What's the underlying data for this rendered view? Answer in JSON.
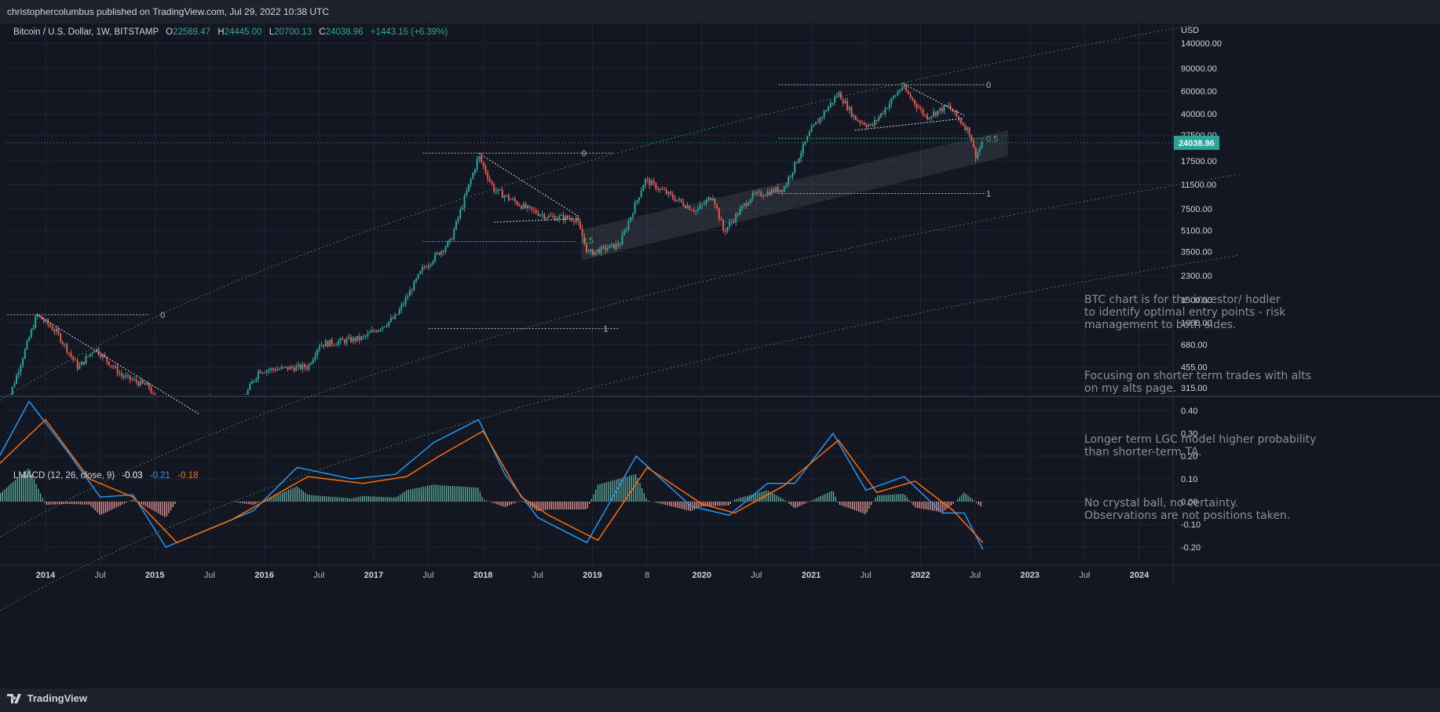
{
  "header": {
    "published_text": "christophercolumbus published on TradingView.com, Jul 29, 2022 10:38 UTC"
  },
  "legend": {
    "symbol": "Bitcoin / U.S. Dollar, 1W, BITSTAMP",
    "o_label": "O",
    "o_value": "22589.47",
    "h_label": "H",
    "h_value": "24445.00",
    "l_label": "L",
    "l_value": "20700.13",
    "c_label": "C",
    "c_value": "24038.96",
    "change": "+1443.15 (+6.39%)"
  },
  "macd_legend": {
    "name": "LMACD (12, 26, close, 9)",
    "hist": "-0.03",
    "macd": "-0.21",
    "signal": "-0.18"
  },
  "notes": [
    "BTC chart is for the investor/ hodler\nto identify optimal entry points - risk\nmanagement to both sides.",
    "Focusing on shorter term trades with alts\non my alts page.",
    "Longer term LGC model higher probability\nthan shorter-term TA.",
    "No crystal ball, no certainty.\nObservations are not positions taken."
  ],
  "footer": {
    "brand": "TradingView"
  },
  "colors": {
    "background": "#131722",
    "bar": "#1e222d",
    "up": "#26a69a",
    "down": "#ef5350",
    "macd_line": "#2196f3",
    "signal_line": "#ff6d00",
    "last_price_bg": "#26a69a"
  },
  "chart_data": [
    {
      "type": "candlestick",
      "title": "Bitcoin / U.S. Dollar, 1W, BITSTAMP",
      "scale": "log",
      "currency": "USD",
      "y_ticks": [
        "140000.00",
        "90000.00",
        "60000.00",
        "40000.00",
        "27500.00",
        "17500.00",
        "11500.00",
        "7500.00",
        "5100.00",
        "3500.00",
        "2300.00",
        "1500.00",
        "1000.00",
        "680.00",
        "455.00",
        "315.00"
      ],
      "x_ticks": [
        "2014",
        "Jul",
        "2015",
        "Jul",
        "2016",
        "Jul",
        "2017",
        "Jul",
        "2018",
        "Jul",
        "2019",
        "8",
        "2020",
        "Jul",
        "2021",
        "Jul",
        "2022",
        "Jul",
        "2023",
        "Jul",
        "2024"
      ],
      "last_price": "24038.96",
      "price_path": [
        {
          "t": 2013.6,
          "v": 180
        },
        {
          "t": 2013.92,
          "v": 1150
        },
        {
          "t": 2014.1,
          "v": 850
        },
        {
          "t": 2014.3,
          "v": 450
        },
        {
          "t": 2014.45,
          "v": 640
        },
        {
          "t": 2014.7,
          "v": 390
        },
        {
          "t": 2014.95,
          "v": 320
        },
        {
          "t": 2015.05,
          "v": 200
        },
        {
          "t": 2015.5,
          "v": 260
        },
        {
          "t": 2015.8,
          "v": 250
        },
        {
          "t": 2015.95,
          "v": 430
        },
        {
          "t": 2016.4,
          "v": 460
        },
        {
          "t": 2016.5,
          "v": 680
        },
        {
          "t": 2016.9,
          "v": 760
        },
        {
          "t": 2017.2,
          "v": 1100
        },
        {
          "t": 2017.45,
          "v": 2600
        },
        {
          "t": 2017.7,
          "v": 4200
        },
        {
          "t": 2017.96,
          "v": 19000
        },
        {
          "t": 2018.1,
          "v": 10500
        },
        {
          "t": 2018.4,
          "v": 7500
        },
        {
          "t": 2018.6,
          "v": 6500
        },
        {
          "t": 2018.85,
          "v": 6300
        },
        {
          "t": 2018.96,
          "v": 3400
        },
        {
          "t": 2019.25,
          "v": 4000
        },
        {
          "t": 2019.48,
          "v": 12500
        },
        {
          "t": 2019.75,
          "v": 9000
        },
        {
          "t": 2019.95,
          "v": 7200
        },
        {
          "t": 2020.1,
          "v": 9500
        },
        {
          "t": 2020.2,
          "v": 5000
        },
        {
          "t": 2020.45,
          "v": 9300
        },
        {
          "t": 2020.75,
          "v": 10800
        },
        {
          "t": 2021.0,
          "v": 30000
        },
        {
          "t": 2021.25,
          "v": 58000
        },
        {
          "t": 2021.4,
          "v": 37000
        },
        {
          "t": 2021.55,
          "v": 32000
        },
        {
          "t": 2021.83,
          "v": 65000
        },
        {
          "t": 2022.05,
          "v": 38000
        },
        {
          "t": 2022.25,
          "v": 46000
        },
        {
          "t": 2022.45,
          "v": 29000
        },
        {
          "t": 2022.5,
          "v": 19000
        },
        {
          "t": 2022.57,
          "v": 24038.96
        }
      ],
      "fib_labels": [
        "0",
        "0.5",
        "1"
      ]
    },
    {
      "type": "line",
      "title": "LMACD (12, 26, close, 9)",
      "y_ticks": [
        "0.40",
        "0.30",
        "0.20",
        "0.10",
        "0.00",
        "-0.10",
        "-0.20"
      ],
      "series": [
        {
          "name": "MACD",
          "points": [
            {
              "t": 2013.5,
              "v": 0.13
            },
            {
              "t": 2013.85,
              "v": 0.44
            },
            {
              "t": 2014.2,
              "v": 0.22
            },
            {
              "t": 2014.5,
              "v": 0.02
            },
            {
              "t": 2014.8,
              "v": 0.03
            },
            {
              "t": 2015.1,
              "v": -0.2
            },
            {
              "t": 2015.6,
              "v": -0.1
            },
            {
              "t": 2015.9,
              "v": -0.04
            },
            {
              "t": 2016.3,
              "v": 0.15
            },
            {
              "t": 2016.8,
              "v": 0.1
            },
            {
              "t": 2017.2,
              "v": 0.12
            },
            {
              "t": 2017.55,
              "v": 0.26
            },
            {
              "t": 2017.96,
              "v": 0.36
            },
            {
              "t": 2018.2,
              "v": 0.12
            },
            {
              "t": 2018.5,
              "v": -0.07
            },
            {
              "t": 2018.95,
              "v": -0.18
            },
            {
              "t": 2019.4,
              "v": 0.2
            },
            {
              "t": 2019.9,
              "v": -0.02
            },
            {
              "t": 2020.25,
              "v": -0.06
            },
            {
              "t": 2020.6,
              "v": 0.08
            },
            {
              "t": 2020.85,
              "v": 0.08
            },
            {
              "t": 2021.2,
              "v": 0.3
            },
            {
              "t": 2021.5,
              "v": 0.05
            },
            {
              "t": 2021.85,
              "v": 0.11
            },
            {
              "t": 2022.2,
              "v": -0.05
            },
            {
              "t": 2022.4,
              "v": -0.05
            },
            {
              "t": 2022.57,
              "v": -0.21
            }
          ]
        },
        {
          "name": "Signal",
          "points": [
            {
              "t": 2013.5,
              "v": 0.13
            },
            {
              "t": 2014.0,
              "v": 0.36
            },
            {
              "t": 2014.4,
              "v": 0.1
            },
            {
              "t": 2014.8,
              "v": 0.02
            },
            {
              "t": 2015.2,
              "v": -0.18
            },
            {
              "t": 2015.7,
              "v": -0.08
            },
            {
              "t": 2016.4,
              "v": 0.11
            },
            {
              "t": 2016.9,
              "v": 0.08
            },
            {
              "t": 2017.3,
              "v": 0.11
            },
            {
              "t": 2017.6,
              "v": 0.2
            },
            {
              "t": 2018.0,
              "v": 0.31
            },
            {
              "t": 2018.35,
              "v": 0.02
            },
            {
              "t": 2018.6,
              "v": -0.06
            },
            {
              "t": 2019.05,
              "v": -0.17
            },
            {
              "t": 2019.5,
              "v": 0.15
            },
            {
              "t": 2020.0,
              "v": -0.01
            },
            {
              "t": 2020.3,
              "v": -0.05
            },
            {
              "t": 2020.75,
              "v": 0.07
            },
            {
              "t": 2021.25,
              "v": 0.27
            },
            {
              "t": 2021.6,
              "v": 0.04
            },
            {
              "t": 2021.95,
              "v": 0.09
            },
            {
              "t": 2022.3,
              "v": -0.04
            },
            {
              "t": 2022.57,
              "v": -0.18
            }
          ]
        }
      ]
    }
  ]
}
